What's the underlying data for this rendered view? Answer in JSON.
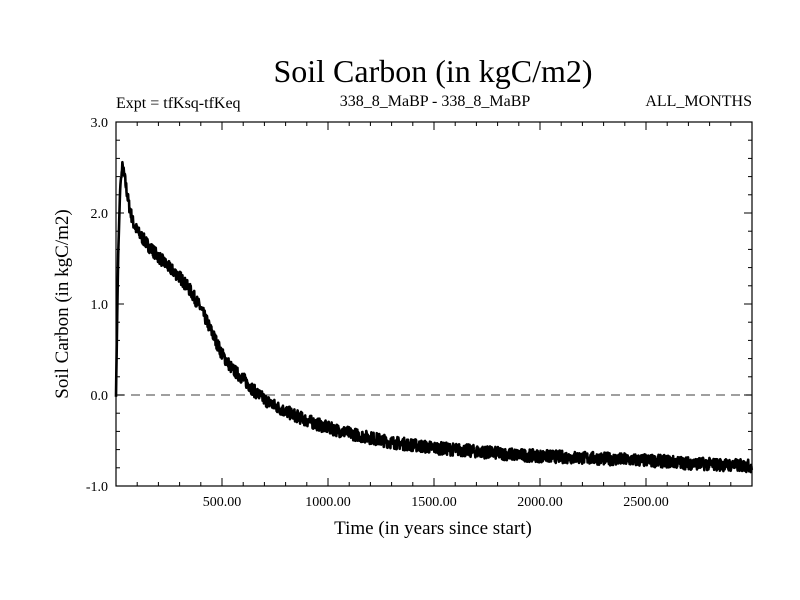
{
  "chart_data": {
    "type": "line",
    "title": "Soil Carbon (in kgC/m2)",
    "subtitle_left": "Expt = tfKsq-tfKeq",
    "subtitle_center": "338_8_MaBP - 338_8_MaBP",
    "subtitle_right": "ALL_MONTHS",
    "xlabel": "Time (in years since start)",
    "ylabel": "Soil Carbon (in kgC/m2)",
    "xlim": [
      0,
      3000
    ],
    "ylim": [
      -1.0,
      3.0
    ],
    "x_ticks": [
      500,
      1000,
      1500,
      2000,
      2500
    ],
    "x_tick_labels": [
      "500.00",
      "1000.00",
      "1500.00",
      "2000.00",
      "2500.00"
    ],
    "y_ticks": [
      -1.0,
      0.0,
      1.0,
      2.0,
      3.0
    ],
    "y_tick_labels": [
      "-1.0",
      "0.0",
      "1.0",
      "2.0",
      "3.0"
    ],
    "reference_line": 0.0,
    "series": [
      {
        "name": "tfKsq-tfKeq",
        "x": [
          0,
          10,
          20,
          30,
          40,
          60,
          80,
          100,
          150,
          200,
          250,
          300,
          350,
          400,
          450,
          500,
          550,
          600,
          650,
          700,
          750,
          800,
          900,
          1000,
          1100,
          1200,
          1300,
          1400,
          1500,
          1600,
          1700,
          1800,
          1900,
          2000,
          2100,
          2200,
          2300,
          2400,
          2500,
          2600,
          2700,
          2800,
          2900,
          3000
        ],
        "y": [
          0.0,
          1.5,
          2.3,
          2.5,
          2.4,
          2.1,
          1.9,
          1.8,
          1.65,
          1.52,
          1.4,
          1.3,
          1.15,
          0.95,
          0.7,
          0.45,
          0.28,
          0.18,
          0.05,
          -0.05,
          -0.12,
          -0.18,
          -0.28,
          -0.36,
          -0.42,
          -0.47,
          -0.52,
          -0.55,
          -0.58,
          -0.6,
          -0.62,
          -0.64,
          -0.66,
          -0.67,
          -0.68,
          -0.69,
          -0.7,
          -0.71,
          -0.72,
          -0.73,
          -0.75,
          -0.76,
          -0.77,
          -0.78
        ]
      }
    ]
  }
}
